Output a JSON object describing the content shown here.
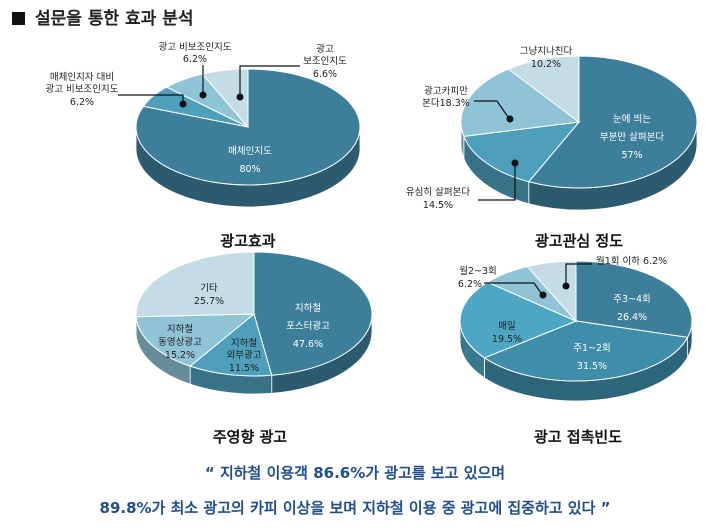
{
  "title": "설문을 통한 효과 분석",
  "quote": {
    "line1": "“ 지하철 이용객 86.6%가 광고를 보고 있으며",
    "line2": "89.8%가 최소 광고의 카피 이상을 보며 지하철 이용 중 광고에 집중하고 있다 ”"
  },
  "colors": {
    "dark": "#3d7f9a",
    "mid": "#4d9fbc",
    "light": "#8fc4d6",
    "pale": "#c3dce5",
    "quote": "#1f4e8c"
  },
  "chart_data": [
    {
      "type": "pie",
      "title": "광고효과",
      "slices": [
        {
          "name": "매체인지도",
          "value": 80,
          "label": "80%",
          "color": "#3d7f9a"
        },
        {
          "name": "매체인지자 대비 광고 비보조인지도",
          "value": 6.2,
          "label": "6.2%",
          "color": "#4d9fbc"
        },
        {
          "name": "광고 비보조인지도",
          "value": 6.2,
          "label": "6.2%",
          "color": "#8fc4d6"
        },
        {
          "name": "광고 보조인지도",
          "value": 6.6,
          "label": "6.6%",
          "color": "#c3dce5"
        }
      ]
    },
    {
      "type": "pie",
      "title": "광고관심 정도",
      "slices": [
        {
          "name": "눈에 띄는 부분만 살펴본다",
          "value": 57,
          "label": "57%",
          "color": "#3d7f9a"
        },
        {
          "name": "유심히 살펴본다",
          "value": 14.5,
          "label": "14.5%",
          "color": "#4d9fbc"
        },
        {
          "name": "광고카피만 본다",
          "value": 18.3,
          "label": "18.3%",
          "color": "#8fc4d6"
        },
        {
          "name": "그냥지나친다",
          "value": 10.2,
          "label": "10.2%",
          "color": "#c3dce5"
        }
      ]
    },
    {
      "type": "pie",
      "title": "주영향 광고",
      "slices": [
        {
          "name": "지하철 포스터광고",
          "value": 47.6,
          "label": "47.6%",
          "color": "#3d7f9a"
        },
        {
          "name": "지하철 외부광고",
          "value": 11.5,
          "label": "11.5%",
          "color": "#4d9fbc"
        },
        {
          "name": "지하철 동영상광고",
          "value": 15.2,
          "label": "15.2%",
          "color": "#8fc4d6"
        },
        {
          "name": "기타",
          "value": 25.7,
          "label": "25.7%",
          "color": "#c3dce5"
        }
      ]
    },
    {
      "type": "pie",
      "title": "광고 접촉빈도",
      "slices": [
        {
          "name": "주3~4회",
          "value": 26.4,
          "label": "26.4%",
          "color": "#3d7f9a"
        },
        {
          "name": "주1~2회",
          "value": 31.5,
          "label": "31.5%",
          "color": "#3f8ea9"
        },
        {
          "name": "매일",
          "value": 19.5,
          "label": "19.5%",
          "color": "#4da7c4"
        },
        {
          "name": "월2~3회",
          "value": 6.2,
          "label": "6.2%",
          "color": "#8fc4d6"
        },
        {
          "name": "월1회 이하",
          "value": 6.2,
          "label": "6.2%",
          "color": "#c3dce5"
        }
      ]
    }
  ]
}
